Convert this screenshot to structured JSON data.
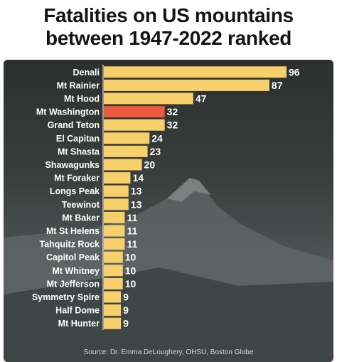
{
  "title_line1": "Fatalities on US mountains",
  "title_line2": "between 1947-2022 ranked",
  "source": "Source: Dr. Emma DeLoughery, OHSU, Boston Globe",
  "colors": {
    "bar": "#f7cf6b",
    "highlight": "#ee5a3c",
    "text": "#ffffff",
    "title": "#141414"
  },
  "chart_data": {
    "type": "bar",
    "orientation": "horizontal",
    "title": "Fatalities on US mountains between 1947-2022 ranked",
    "categories": [
      "Denali",
      "Mt Rainier",
      "Mt Hood",
      "Mt Washington",
      "Grand Teton",
      "El Capitan",
      "Mt Shasta",
      "Shawagunks",
      "Mt Foraker",
      "Longs Peak",
      "Teewinot",
      "Mt Baker",
      "Mt St Helens",
      "Tahquitz Rock",
      "Capitol Peak",
      "Mt Whitney",
      "Mt Jefferson",
      "Symmetry Spire",
      "Half Dome",
      "Mt Hunter"
    ],
    "values": [
      96,
      87,
      47,
      32,
      32,
      24,
      23,
      20,
      14,
      13,
      13,
      11,
      11,
      11,
      10,
      10,
      10,
      9,
      9,
      9
    ],
    "highlight_category": "Mt Washington",
    "xlim": [
      0,
      96
    ],
    "grid": false,
    "legend": "none"
  }
}
